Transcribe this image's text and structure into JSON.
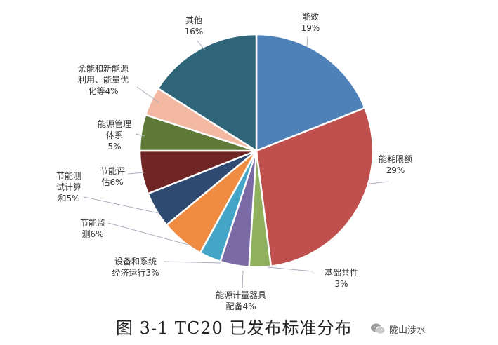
{
  "chart_data": {
    "type": "pie",
    "start_angle_deg": 0,
    "direction": "clockwise",
    "slices": [
      {
        "label_lines": [
          "能效",
          "19%"
        ],
        "value": 19,
        "color": "#4f81b9"
      },
      {
        "label_lines": [
          "能耗限额",
          "29%"
        ],
        "value": 29,
        "color": "#c0504d"
      },
      {
        "label_lines": [
          "基础共性",
          "3%"
        ],
        "value": 3,
        "color": "#8fb15e"
      },
      {
        "label_lines": [
          "能源计量器具",
          "配备4%"
        ],
        "value": 4,
        "color": "#7a6aa6"
      },
      {
        "label_lines": [
          "设备和系统",
          "经济运行3%"
        ],
        "value": 3,
        "color": "#45a5c6"
      },
      {
        "label_lines": [
          "节能监",
          "测6%"
        ],
        "value": 6,
        "color": "#f08c42"
      },
      {
        "label_lines": [
          "节能测",
          "试计算",
          "和5%"
        ],
        "value": 5,
        "color": "#2e4a70"
      },
      {
        "label_lines": [
          "节能评",
          "估6%"
        ],
        "value": 6,
        "color": "#6f2624"
      },
      {
        "label_lines": [
          "能源管理",
          "体系",
          "5%"
        ],
        "value": 5,
        "color": "#5f7a37"
      },
      {
        "label_lines": [
          "余能和新能源",
          "利用、能量优",
          "化等4%"
        ],
        "value": 4,
        "color": "#f2b8a2"
      },
      {
        "label_lines": [
          "其他",
          "16%"
        ],
        "value": 16,
        "color": "#2e6578"
      }
    ]
  },
  "caption": "图 3-1 TC20 已发布标准分布",
  "watermark": {
    "text": "陇山涉水",
    "icon": "wechat-icon"
  }
}
